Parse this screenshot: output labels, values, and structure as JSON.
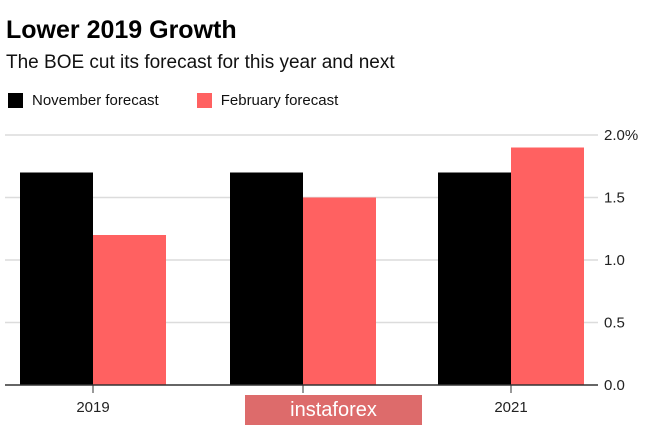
{
  "chart_data": {
    "type": "bar",
    "title": "Lower 2019 Growth",
    "subtitle": "The BOE cut its forecast for this year and next",
    "categories": [
      "2019",
      "",
      "2021"
    ],
    "series": [
      {
        "name": "November forecast",
        "color": "#000000",
        "values": [
          1.7,
          1.7,
          1.7
        ]
      },
      {
        "name": "February forecast",
        "color": "#ff6161",
        "values": [
          1.2,
          1.5,
          1.9
        ]
      }
    ],
    "yticks": [
      {
        "value": 0,
        "label": "0.0"
      },
      {
        "value": 0.5,
        "label": "0.5"
      },
      {
        "value": 1.0,
        "label": "1.0"
      },
      {
        "value": 1.5,
        "label": "1.5"
      },
      {
        "value": 2.0,
        "label": "2.0%"
      }
    ],
    "ylim": [
      0,
      2.0
    ],
    "xlabel": "",
    "ylabel": "",
    "grid": true,
    "legend_position": "top-left"
  },
  "watermark": "instaforex"
}
